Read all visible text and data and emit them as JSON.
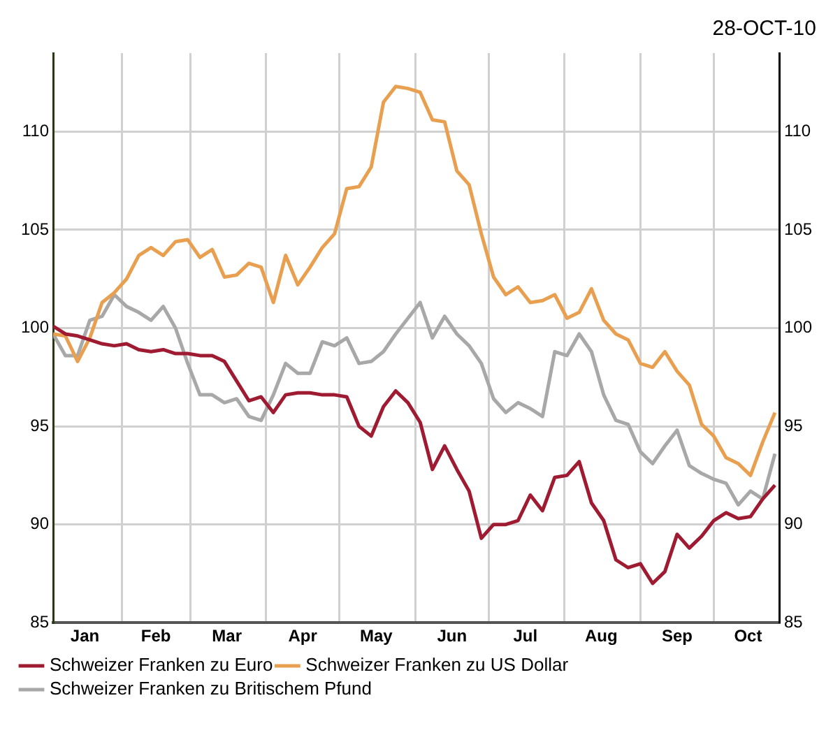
{
  "chart_data": {
    "type": "line",
    "title": "28-OCT-10",
    "x": [
      "--01-04",
      "--01-09",
      "--01-14",
      "--01-19",
      "--01-24",
      "--01-29",
      "--02-03",
      "--02-08",
      "--02-13",
      "--02-18",
      "--02-23",
      "--02-28",
      "--03-05",
      "--03-10",
      "--03-15",
      "--03-20",
      "--03-25",
      "--03-30",
      "--04-04",
      "--04-09",
      "--04-14",
      "--04-19",
      "--04-24",
      "--04-29",
      "--05-04",
      "--05-09",
      "--05-14",
      "--05-19",
      "--05-24",
      "--05-29",
      "--06-03",
      "--06-08",
      "--06-13",
      "--06-18",
      "--06-23",
      "--06-28",
      "--07-03",
      "--07-08",
      "--07-13",
      "--07-18",
      "--07-23",
      "--07-28",
      "--08-02",
      "--08-07",
      "--08-12",
      "--08-17",
      "--08-22",
      "--08-27",
      "--09-01",
      "--09-06",
      "--09-11",
      "--09-16",
      "--09-21",
      "--09-26",
      "--10-01",
      "--10-06",
      "--10-11",
      "--10-16",
      "--10-21",
      "--10-26"
    ],
    "series": [
      {
        "name": "Schweizer Franken zu Euro",
        "color": "#9e1b32",
        "values": [
          100.1,
          99.7,
          99.6,
          99.4,
          99.2,
          99.1,
          99.2,
          98.9,
          98.8,
          98.9,
          98.7,
          98.7,
          98.6,
          98.6,
          98.3,
          97.3,
          96.3,
          96.5,
          95.7,
          96.6,
          96.7,
          96.7,
          96.6,
          96.6,
          96.5,
          95.0,
          94.5,
          96.0,
          96.8,
          96.2,
          95.2,
          92.8,
          94.0,
          92.8,
          91.7,
          89.3,
          90.0,
          90.0,
          90.2,
          91.5,
          90.7,
          92.4,
          92.5,
          93.2,
          91.1,
          90.2,
          88.2,
          87.8,
          88.0,
          87.0,
          87.6,
          89.5,
          88.8,
          89.4,
          90.2,
          90.6,
          90.3,
          90.4,
          91.3,
          92.0
        ]
      },
      {
        "name": "Schweizer Franken zu US Dollar",
        "color": "#e8a050",
        "values": [
          99.7,
          99.6,
          98.3,
          99.5,
          101.3,
          101.8,
          102.5,
          103.7,
          104.1,
          103.7,
          104.4,
          104.5,
          103.6,
          104.0,
          102.6,
          102.7,
          103.3,
          103.1,
          101.3,
          103.7,
          102.2,
          103.1,
          104.1,
          104.8,
          107.1,
          107.2,
          108.2,
          111.5,
          112.3,
          112.2,
          112.0,
          110.6,
          110.5,
          108.0,
          107.3,
          104.8,
          102.6,
          101.7,
          102.1,
          101.3,
          101.4,
          101.7,
          100.5,
          100.8,
          102.0,
          100.4,
          99.7,
          99.4,
          98.2,
          98.0,
          98.8,
          97.8,
          97.1,
          95.1,
          94.5,
          93.4,
          93.1,
          92.5,
          94.2,
          95.7
        ]
      },
      {
        "name": "Schweizer Franken zu Britischem Pfund",
        "color": "#a8a8a8",
        "values": [
          99.7,
          98.6,
          98.6,
          100.4,
          100.6,
          101.7,
          101.1,
          100.8,
          100.4,
          101.1,
          100.0,
          98.2,
          96.6,
          96.6,
          96.2,
          96.4,
          95.5,
          95.3,
          96.6,
          98.2,
          97.7,
          97.7,
          99.3,
          99.1,
          99.5,
          98.2,
          98.3,
          98.8,
          99.7,
          100.5,
          101.3,
          99.5,
          100.6,
          99.7,
          99.1,
          98.2,
          96.4,
          95.7,
          96.2,
          95.9,
          95.5,
          98.8,
          98.6,
          99.7,
          98.8,
          96.6,
          95.3,
          95.1,
          93.7,
          93.1,
          94.0,
          94.8,
          93.0,
          92.6,
          92.3,
          92.1,
          91.0,
          91.7,
          91.3,
          93.6
        ]
      }
    ],
    "xlim": [
      "--01-04",
      "--10-28"
    ],
    "xticks": [
      {
        "value": "--01-17",
        "label": "Jan"
      },
      {
        "value": "--02-01",
        "label": null
      },
      {
        "value": "--02-15",
        "label": "Feb"
      },
      {
        "value": "--03-01",
        "label": null
      },
      {
        "value": "--03-16",
        "label": "Mar"
      },
      {
        "value": "--04-01",
        "label": null
      },
      {
        "value": "--04-16",
        "label": "Apr"
      },
      {
        "value": "--05-01",
        "label": null
      },
      {
        "value": "--05-16",
        "label": "May"
      },
      {
        "value": "--06-01",
        "label": null
      },
      {
        "value": "--06-16",
        "label": "Jun"
      },
      {
        "value": "--07-01",
        "label": null
      },
      {
        "value": "--07-16",
        "label": "Jul"
      },
      {
        "value": "--08-01",
        "label": null
      },
      {
        "value": "--08-16",
        "label": "Aug"
      },
      {
        "value": "--09-01",
        "label": null
      },
      {
        "value": "--09-16",
        "label": "Sep"
      },
      {
        "value": "--10-01",
        "label": null
      },
      {
        "value": "--10-15",
        "label": "Oct"
      }
    ],
    "ylim": [
      85,
      114
    ],
    "yticks": [
      85,
      90,
      95,
      100,
      105,
      110
    ],
    "y2lim": [
      85,
      114
    ],
    "y2ticks": [
      85,
      90,
      95,
      100,
      105,
      110
    ],
    "grid": true,
    "legend": "bottom left",
    "marker": "none",
    "line_style": "solid"
  }
}
